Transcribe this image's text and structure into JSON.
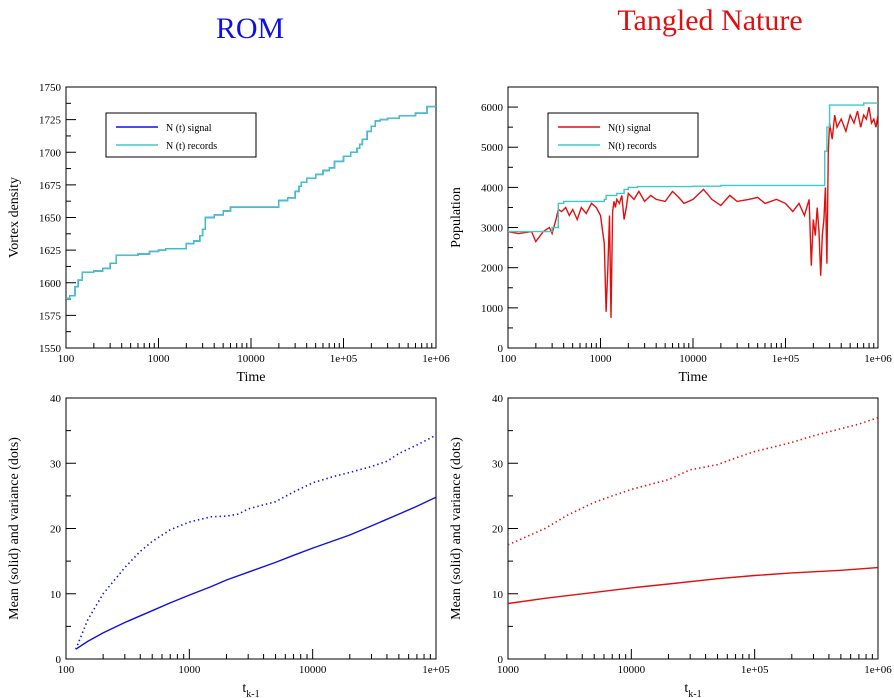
{
  "columns": [
    {
      "title": "ROM",
      "color": "#1010e0"
    },
    {
      "title": "Tangled Nature",
      "color": "#e01010"
    }
  ],
  "chart_data": [
    {
      "type": "line",
      "panel": "top-left",
      "xlabel": "Time",
      "ylabel": "Vortex density",
      "xscale": "log",
      "xlim": [
        100,
        1000000
      ],
      "ylim": [
        1550,
        1750
      ],
      "xticks": [
        "100",
        "1000",
        "10000",
        "1e+05",
        "1e+06"
      ],
      "yticks": [
        "1550",
        "1575",
        "1600",
        "1625",
        "1650",
        "1675",
        "1700",
        "1725",
        "1750"
      ],
      "legend": "top-left",
      "series": [
        {
          "name": "N (t) signal",
          "color": "#1010e0",
          "step": true,
          "x": [
            100,
            110,
            125,
            135,
            150,
            200,
            250,
            300,
            350,
            600,
            800,
            1000,
            1200,
            2000,
            2400,
            2800,
            3000,
            3200,
            4000,
            5000,
            6000,
            20000,
            25000,
            30000,
            33000,
            35000,
            40000,
            50000,
            60000,
            70000,
            80000,
            100000,
            120000,
            140000,
            150000,
            160000,
            180000,
            200000,
            220000,
            250000,
            300000,
            400000,
            600000,
            800000,
            1000000
          ],
          "y": [
            1588,
            1590,
            1597,
            1602,
            1608,
            1609,
            1611,
            1615,
            1621,
            1622,
            1624,
            1625,
            1626,
            1630,
            1632,
            1636,
            1641,
            1650,
            1652,
            1655,
            1658,
            1663,
            1665,
            1670,
            1674,
            1677,
            1680,
            1683,
            1686,
            1688,
            1693,
            1697,
            1700,
            1703,
            1706,
            1710,
            1716,
            1720,
            1724,
            1725,
            1726,
            1728,
            1730,
            1735,
            1735
          ]
        },
        {
          "name": "N (t) records",
          "color": "#40c8c8",
          "step": true,
          "x": [
            100,
            110,
            125,
            135,
            150,
            200,
            250,
            300,
            350,
            600,
            800,
            1000,
            1200,
            2000,
            2400,
            2800,
            3000,
            3200,
            4000,
            5000,
            6000,
            20000,
            25000,
            30000,
            33000,
            35000,
            40000,
            50000,
            60000,
            70000,
            80000,
            100000,
            120000,
            140000,
            150000,
            160000,
            180000,
            200000,
            220000,
            250000,
            300000,
            400000,
            600000,
            800000,
            1000000
          ],
          "y": [
            1588,
            1590,
            1597,
            1602,
            1608,
            1609,
            1611,
            1615,
            1621,
            1622,
            1624,
            1625,
            1626,
            1630,
            1632,
            1636,
            1641,
            1650,
            1652,
            1655,
            1658,
            1663,
            1665,
            1670,
            1674,
            1677,
            1680,
            1683,
            1686,
            1688,
            1693,
            1697,
            1700,
            1703,
            1706,
            1710,
            1716,
            1720,
            1724,
            1725,
            1726,
            1728,
            1730,
            1735,
            1735
          ]
        }
      ]
    },
    {
      "type": "line",
      "panel": "top-right",
      "xlabel": "Time",
      "ylabel": "Population",
      "xscale": "log",
      "xlim": [
        100,
        1000000
      ],
      "ylim": [
        0,
        6500
      ],
      "xticks": [
        "100",
        "1000",
        "10000",
        "1e+05",
        "1e+06"
      ],
      "yticks": [
        "0",
        "1000",
        "2000",
        "3000",
        "4000",
        "5000",
        "6000"
      ],
      "legend": "top-left",
      "series": [
        {
          "name": "N(t) signal",
          "color": "#e01010",
          "x": [
            100,
            130,
            180,
            200,
            240,
            280,
            300,
            330,
            350,
            380,
            420,
            460,
            500,
            560,
            620,
            700,
            800,
            900,
            1000,
            1100,
            1150,
            1200,
            1250,
            1300,
            1350,
            1400,
            1450,
            1500,
            1600,
            1700,
            1800,
            1900,
            2000,
            2300,
            2600,
            3000,
            3500,
            4000,
            5000,
            6000,
            7000,
            8000,
            10000,
            13000,
            16000,
            20000,
            25000,
            30000,
            40000,
            50000,
            60000,
            80000,
            100000,
            120000,
            140000,
            160000,
            180000,
            190000,
            200000,
            210000,
            220000,
            230000,
            240000,
            250000,
            260000,
            270000,
            280000,
            290000,
            300000,
            320000,
            340000,
            360000,
            400000,
            450000,
            500000,
            550000,
            600000,
            650000,
            700000,
            750000,
            800000,
            850000,
            900000,
            950000,
            1000000
          ],
          "y": [
            2900,
            2850,
            2900,
            2650,
            2900,
            3000,
            2850,
            3200,
            3450,
            3400,
            3500,
            3300,
            3450,
            3200,
            3500,
            3350,
            3600,
            3500,
            3300,
            2600,
            900,
            1950,
            3300,
            750,
            3400,
            3650,
            3500,
            3700,
            3600,
            3800,
            3200,
            3500,
            3850,
            3700,
            3900,
            3650,
            3800,
            3700,
            3650,
            3900,
            3750,
            3600,
            3700,
            3950,
            3700,
            3550,
            3800,
            3650,
            3700,
            3750,
            3600,
            3700,
            3600,
            3400,
            3600,
            3300,
            3700,
            2050,
            3200,
            2800,
            3500,
            2900,
            1800,
            2800,
            3200,
            4000,
            2100,
            4900,
            5600,
            5200,
            5800,
            5500,
            5700,
            5400,
            5800,
            5600,
            5900,
            5500,
            5800,
            5700,
            6000,
            5600,
            5700,
            5500,
            5800
          ]
        },
        {
          "name": "N(t) records",
          "color": "#40c8c8",
          "step": true,
          "x": [
            100,
            300,
            350,
            400,
            1100,
            1150,
            1500,
            1800,
            2000,
            2500,
            10000,
            20000,
            250000,
            265000,
            280000,
            300000,
            700000,
            1000000
          ],
          "y": [
            2900,
            3000,
            3600,
            3650,
            3700,
            3800,
            3850,
            3950,
            4000,
            4020,
            4030,
            4050,
            4050,
            4900,
            5500,
            6050,
            6100,
            6100
          ]
        }
      ]
    },
    {
      "type": "line",
      "panel": "bottom-left",
      "xlabel": "t",
      "xlabel_sub": "k-1",
      "ylabel": "Mean (solid) and variance (dots)",
      "xscale": "log",
      "xlim": [
        100,
        100000
      ],
      "ylim": [
        0,
        40
      ],
      "xticks": [
        "100",
        "1000",
        "10000",
        "1e+05"
      ],
      "yticks": [
        "0",
        "10",
        "20",
        "30",
        "40"
      ],
      "series": [
        {
          "name": "",
          "style": "solid",
          "color": "#1010e0",
          "x": [
            120,
            150,
            200,
            300,
            500,
            700,
            1000,
            1500,
            2000,
            3000,
            5000,
            7000,
            10000,
            20000,
            30000,
            50000,
            70000,
            100000
          ],
          "y": [
            1.5,
            2.7,
            4.0,
            5.6,
            7.4,
            8.6,
            9.8,
            11.1,
            12.1,
            13.3,
            14.8,
            15.9,
            17.0,
            19.0,
            20.4,
            22.2,
            23.4,
            24.8
          ]
        },
        {
          "name": "",
          "style": "dotted",
          "color": "#1010e0",
          "x": [
            120,
            150,
            200,
            300,
            400,
            500,
            700,
            1000,
            1500,
            2000,
            2500,
            3000,
            5000,
            7000,
            10000,
            15000,
            20000,
            30000,
            40000,
            50000,
            70000,
            100000
          ],
          "y": [
            1.5,
            6.0,
            10.0,
            14.0,
            16.5,
            18.0,
            19.8,
            21.0,
            21.8,
            21.9,
            22.2,
            23.0,
            24.1,
            25.6,
            27.0,
            28.0,
            28.6,
            29.5,
            30.3,
            31.5,
            32.8,
            34.3
          ]
        }
      ]
    },
    {
      "type": "line",
      "panel": "bottom-right",
      "xlabel": "t",
      "xlabel_sub": "k-1",
      "ylabel": "Mean (solid) and variance (dots)",
      "xscale": "log",
      "xlim": [
        1000,
        1000000
      ],
      "ylim": [
        0,
        40
      ],
      "xticks": [
        "1000",
        "10000",
        "1e+05",
        "1e+06"
      ],
      "yticks": [
        "0",
        "10",
        "20",
        "30",
        "40"
      ],
      "series": [
        {
          "name": "",
          "style": "solid",
          "color": "#e01010",
          "x": [
            1000,
            2000,
            3000,
            5000,
            10000,
            20000,
            50000,
            100000,
            200000,
            500000,
            1000000
          ],
          "y": [
            8.5,
            9.3,
            9.7,
            10.2,
            10.9,
            11.5,
            12.3,
            12.8,
            13.2,
            13.6,
            14.0
          ]
        },
        {
          "name": "",
          "style": "dotted",
          "color": "#e01010",
          "x": [
            1000,
            2000,
            3000,
            5000,
            7000,
            10000,
            20000,
            30000,
            50000,
            70000,
            100000,
            150000,
            200000,
            300000,
            500000,
            700000,
            1000000
          ],
          "y": [
            17.5,
            20.0,
            22.0,
            24.0,
            25.0,
            26.0,
            27.5,
            29.0,
            29.8,
            30.8,
            31.8,
            32.6,
            33.2,
            34.2,
            35.3,
            36.0,
            37.0
          ]
        }
      ]
    }
  ]
}
